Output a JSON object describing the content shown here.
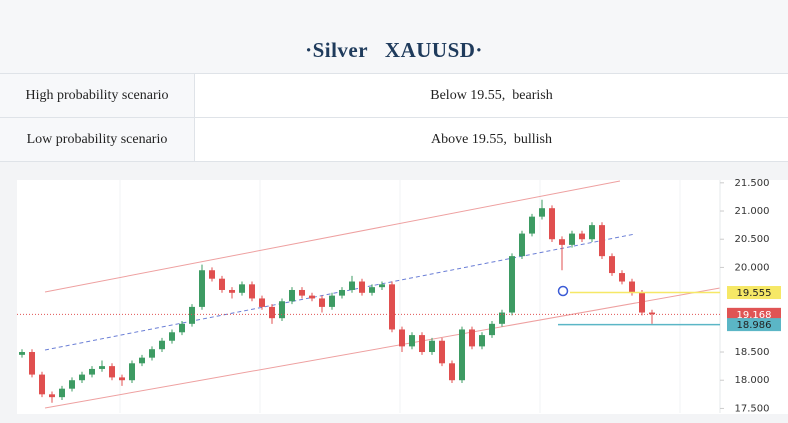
{
  "header": {
    "title": "·Silver   XAUUSD·"
  },
  "table": {
    "rows": [
      [
        "High probability scenario",
        "Below 19.55,  bearish"
      ],
      [
        "Low probability scenario",
        "Above 19.55,  bullish"
      ]
    ]
  },
  "chart_data": {
    "type": "candlestick",
    "up_color": "#3d9b63",
    "down_color": "#e04f4f",
    "ylim": [
      17.41,
      21.55
    ],
    "yticks": [
      {
        "value": 21.5,
        "label": "21.500"
      },
      {
        "value": 21.0,
        "label": "21.000"
      },
      {
        "value": 20.5,
        "label": "20.500"
      },
      {
        "value": 20.0,
        "label": "20.000"
      },
      {
        "value": 18.5,
        "label": "18.500"
      },
      {
        "value": 18.0,
        "label": "18.000"
      },
      {
        "value": 17.5,
        "label": "17.500"
      }
    ],
    "ohlc": [
      [
        18.45,
        18.55,
        18.4,
        18.5
      ],
      [
        18.5,
        18.55,
        18.05,
        18.1
      ],
      [
        18.1,
        18.15,
        17.7,
        17.75
      ],
      [
        17.75,
        17.8,
        17.6,
        17.7
      ],
      [
        17.7,
        17.9,
        17.65,
        17.85
      ],
      [
        17.85,
        18.05,
        17.8,
        18.0
      ],
      [
        18.0,
        18.15,
        17.95,
        18.1
      ],
      [
        18.1,
        18.25,
        18.05,
        18.2
      ],
      [
        18.2,
        18.35,
        18.15,
        18.25
      ],
      [
        18.25,
        18.3,
        18.0,
        18.05
      ],
      [
        18.05,
        18.1,
        17.9,
        18.0
      ],
      [
        18.0,
        18.35,
        17.95,
        18.3
      ],
      [
        18.3,
        18.45,
        18.25,
        18.4
      ],
      [
        18.4,
        18.6,
        18.35,
        18.55
      ],
      [
        18.55,
        18.75,
        18.5,
        18.7
      ],
      [
        18.7,
        18.9,
        18.65,
        18.85
      ],
      [
        18.85,
        19.05,
        18.8,
        19.0
      ],
      [
        19.0,
        19.35,
        18.95,
        19.3
      ],
      [
        19.3,
        20.05,
        19.25,
        19.95
      ],
      [
        19.95,
        20.0,
        19.75,
        19.8
      ],
      [
        19.8,
        19.85,
        19.55,
        19.6
      ],
      [
        19.6,
        19.65,
        19.45,
        19.55
      ],
      [
        19.55,
        19.75,
        19.5,
        19.7
      ],
      [
        19.7,
        19.75,
        19.4,
        19.45
      ],
      [
        19.45,
        19.5,
        19.25,
        19.3
      ],
      [
        19.3,
        19.35,
        19.0,
        19.1
      ],
      [
        19.1,
        19.45,
        19.05,
        19.4
      ],
      [
        19.4,
        19.65,
        19.35,
        19.6
      ],
      [
        19.6,
        19.65,
        19.45,
        19.5
      ],
      [
        19.5,
        19.55,
        19.4,
        19.45
      ],
      [
        19.45,
        19.5,
        19.2,
        19.3
      ],
      [
        19.3,
        19.55,
        19.25,
        19.5
      ],
      [
        19.5,
        19.65,
        19.45,
        19.6
      ],
      [
        19.6,
        19.85,
        19.55,
        19.75
      ],
      [
        19.75,
        19.8,
        19.5,
        19.55
      ],
      [
        19.55,
        19.7,
        19.5,
        19.65
      ],
      [
        19.65,
        19.75,
        19.6,
        19.7
      ],
      [
        19.7,
        19.75,
        18.85,
        18.9
      ],
      [
        18.9,
        18.95,
        18.5,
        18.6
      ],
      [
        18.6,
        18.85,
        18.55,
        18.8
      ],
      [
        18.8,
        18.85,
        18.45,
        18.5
      ],
      [
        18.5,
        18.75,
        18.45,
        18.7
      ],
      [
        18.7,
        18.75,
        18.25,
        18.3
      ],
      [
        18.3,
        18.35,
        17.95,
        18.0
      ],
      [
        18.0,
        18.95,
        17.95,
        18.9
      ],
      [
        18.9,
        18.95,
        18.55,
        18.6
      ],
      [
        18.6,
        18.85,
        18.55,
        18.8
      ],
      [
        18.8,
        19.05,
        18.75,
        19.0
      ],
      [
        19.0,
        19.25,
        18.95,
        19.2
      ],
      [
        19.2,
        20.25,
        19.15,
        20.2
      ],
      [
        20.2,
        20.65,
        20.15,
        20.6
      ],
      [
        20.6,
        20.95,
        20.55,
        20.9
      ],
      [
        20.9,
        21.2,
        20.85,
        21.05
      ],
      [
        21.05,
        21.1,
        20.45,
        20.5
      ],
      [
        20.5,
        20.55,
        19.95,
        20.4
      ],
      [
        20.4,
        20.65,
        20.35,
        20.6
      ],
      [
        20.6,
        20.65,
        20.45,
        20.5
      ],
      [
        20.5,
        20.8,
        20.45,
        20.75
      ],
      [
        20.75,
        20.8,
        20.15,
        20.2
      ],
      [
        20.2,
        20.25,
        19.85,
        19.9
      ],
      [
        19.9,
        19.95,
        19.7,
        19.75
      ],
      [
        19.75,
        19.8,
        19.5,
        19.55
      ],
      [
        19.55,
        19.6,
        19.15,
        19.2
      ],
      [
        19.2,
        19.25,
        19.0,
        19.17
      ]
    ],
    "price_labels": [
      {
        "value": 19.555,
        "color": "#f6e866"
      },
      {
        "value": 19.168,
        "color": "#e05454"
      },
      {
        "value": 18.986,
        "color": "#5bb6c6"
      }
    ]
  }
}
